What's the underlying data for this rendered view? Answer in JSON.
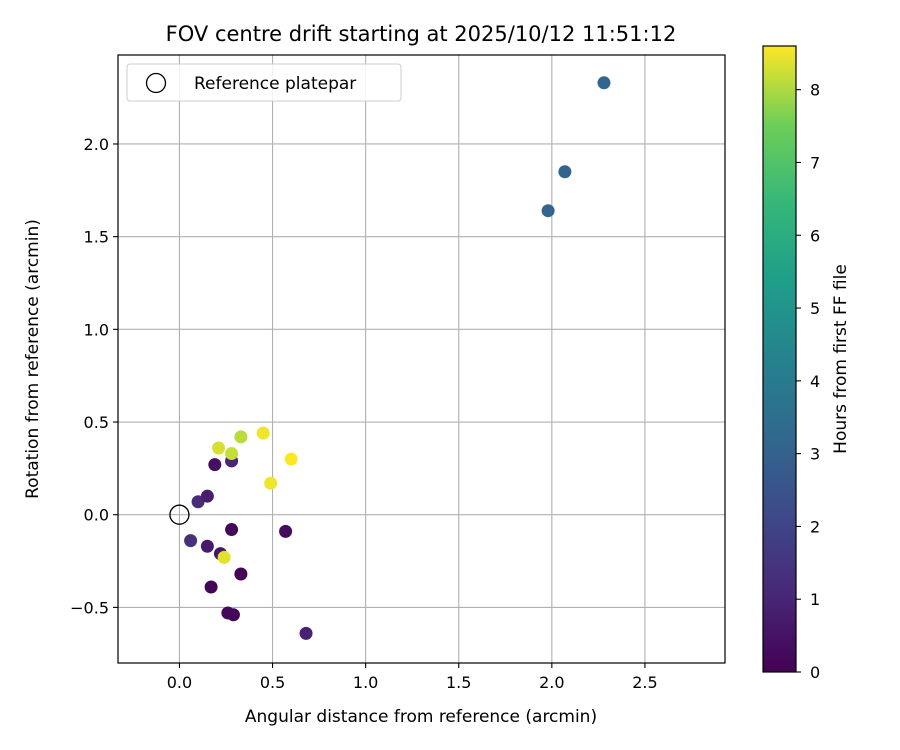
{
  "chart_data": {
    "type": "scatter",
    "title": "FOV centre drift starting at 2025/10/12 11:51:12",
    "xlabel": "Angular distance from reference (arcmin)",
    "ylabel": "Rotation from reference (arcmin)",
    "xlim": [
      -0.33,
      2.93
    ],
    "ylim": [
      -0.8,
      2.48
    ],
    "xticks": [
      0.0,
      0.5,
      1.0,
      1.5,
      2.0,
      2.5
    ],
    "xtick_labels": [
      "0.0",
      "0.5",
      "1.0",
      "1.5",
      "2.0",
      "2.5"
    ],
    "yticks": [
      -0.5,
      0.0,
      0.5,
      1.0,
      1.5,
      2.0
    ],
    "ytick_labels": [
      "−0.5",
      "0.0",
      "0.5",
      "1.0",
      "1.5",
      "2.0"
    ],
    "grid": true,
    "legend": {
      "position": "top-left",
      "entries": [
        {
          "label": "Reference platepar",
          "marker": "hollow-circle"
        }
      ]
    },
    "reference_point": {
      "x": 0.0,
      "y": 0.0
    },
    "colorbar": {
      "label": "Hours from first FF file",
      "min": 0,
      "max": 8.6,
      "colormap": "viridis",
      "ticks": [
        0,
        1,
        2,
        3,
        4,
        5,
        6,
        7,
        8
      ],
      "tick_labels": [
        "0",
        "1",
        "2",
        "3",
        "4",
        "5",
        "6",
        "7",
        "8"
      ]
    },
    "points": [
      {
        "x": 0.68,
        "y": -0.64,
        "hours": 0.9
      },
      {
        "x": 0.29,
        "y": -0.54,
        "hours": 0.1
      },
      {
        "x": 0.26,
        "y": -0.53,
        "hours": 0.2
      },
      {
        "x": 0.17,
        "y": -0.39,
        "hours": 0.1
      },
      {
        "x": 0.33,
        "y": -0.32,
        "hours": 0.1
      },
      {
        "x": 0.06,
        "y": -0.14,
        "hours": 1.4
      },
      {
        "x": 0.15,
        "y": -0.17,
        "hours": 0.7
      },
      {
        "x": 0.22,
        "y": -0.21,
        "hours": 0.6
      },
      {
        "x": 0.28,
        "y": -0.08,
        "hours": 0.2
      },
      {
        "x": 0.57,
        "y": -0.09,
        "hours": 0.3
      },
      {
        "x": 0.1,
        "y": 0.07,
        "hours": 1.2
      },
      {
        "x": 0.15,
        "y": 0.1,
        "hours": 0.8
      },
      {
        "x": 0.19,
        "y": 0.27,
        "hours": 0.4
      },
      {
        "x": 0.28,
        "y": 0.29,
        "hours": 1.0
      },
      {
        "x": 0.21,
        "y": 0.36,
        "hours": 8.3
      },
      {
        "x": 0.28,
        "y": 0.33,
        "hours": 8.2
      },
      {
        "x": 0.33,
        "y": 0.42,
        "hours": 8.1
      },
      {
        "x": 0.45,
        "y": 0.44,
        "hours": 8.5
      },
      {
        "x": 0.6,
        "y": 0.3,
        "hours": 8.6
      },
      {
        "x": 0.49,
        "y": 0.17,
        "hours": 8.5
      },
      {
        "x": 0.24,
        "y": -0.23,
        "hours": 8.4
      },
      {
        "x": 1.98,
        "y": 1.64,
        "hours": 3.1
      },
      {
        "x": 2.07,
        "y": 1.85,
        "hours": 3.1
      },
      {
        "x": 2.28,
        "y": 2.33,
        "hours": 3.2
      }
    ]
  }
}
